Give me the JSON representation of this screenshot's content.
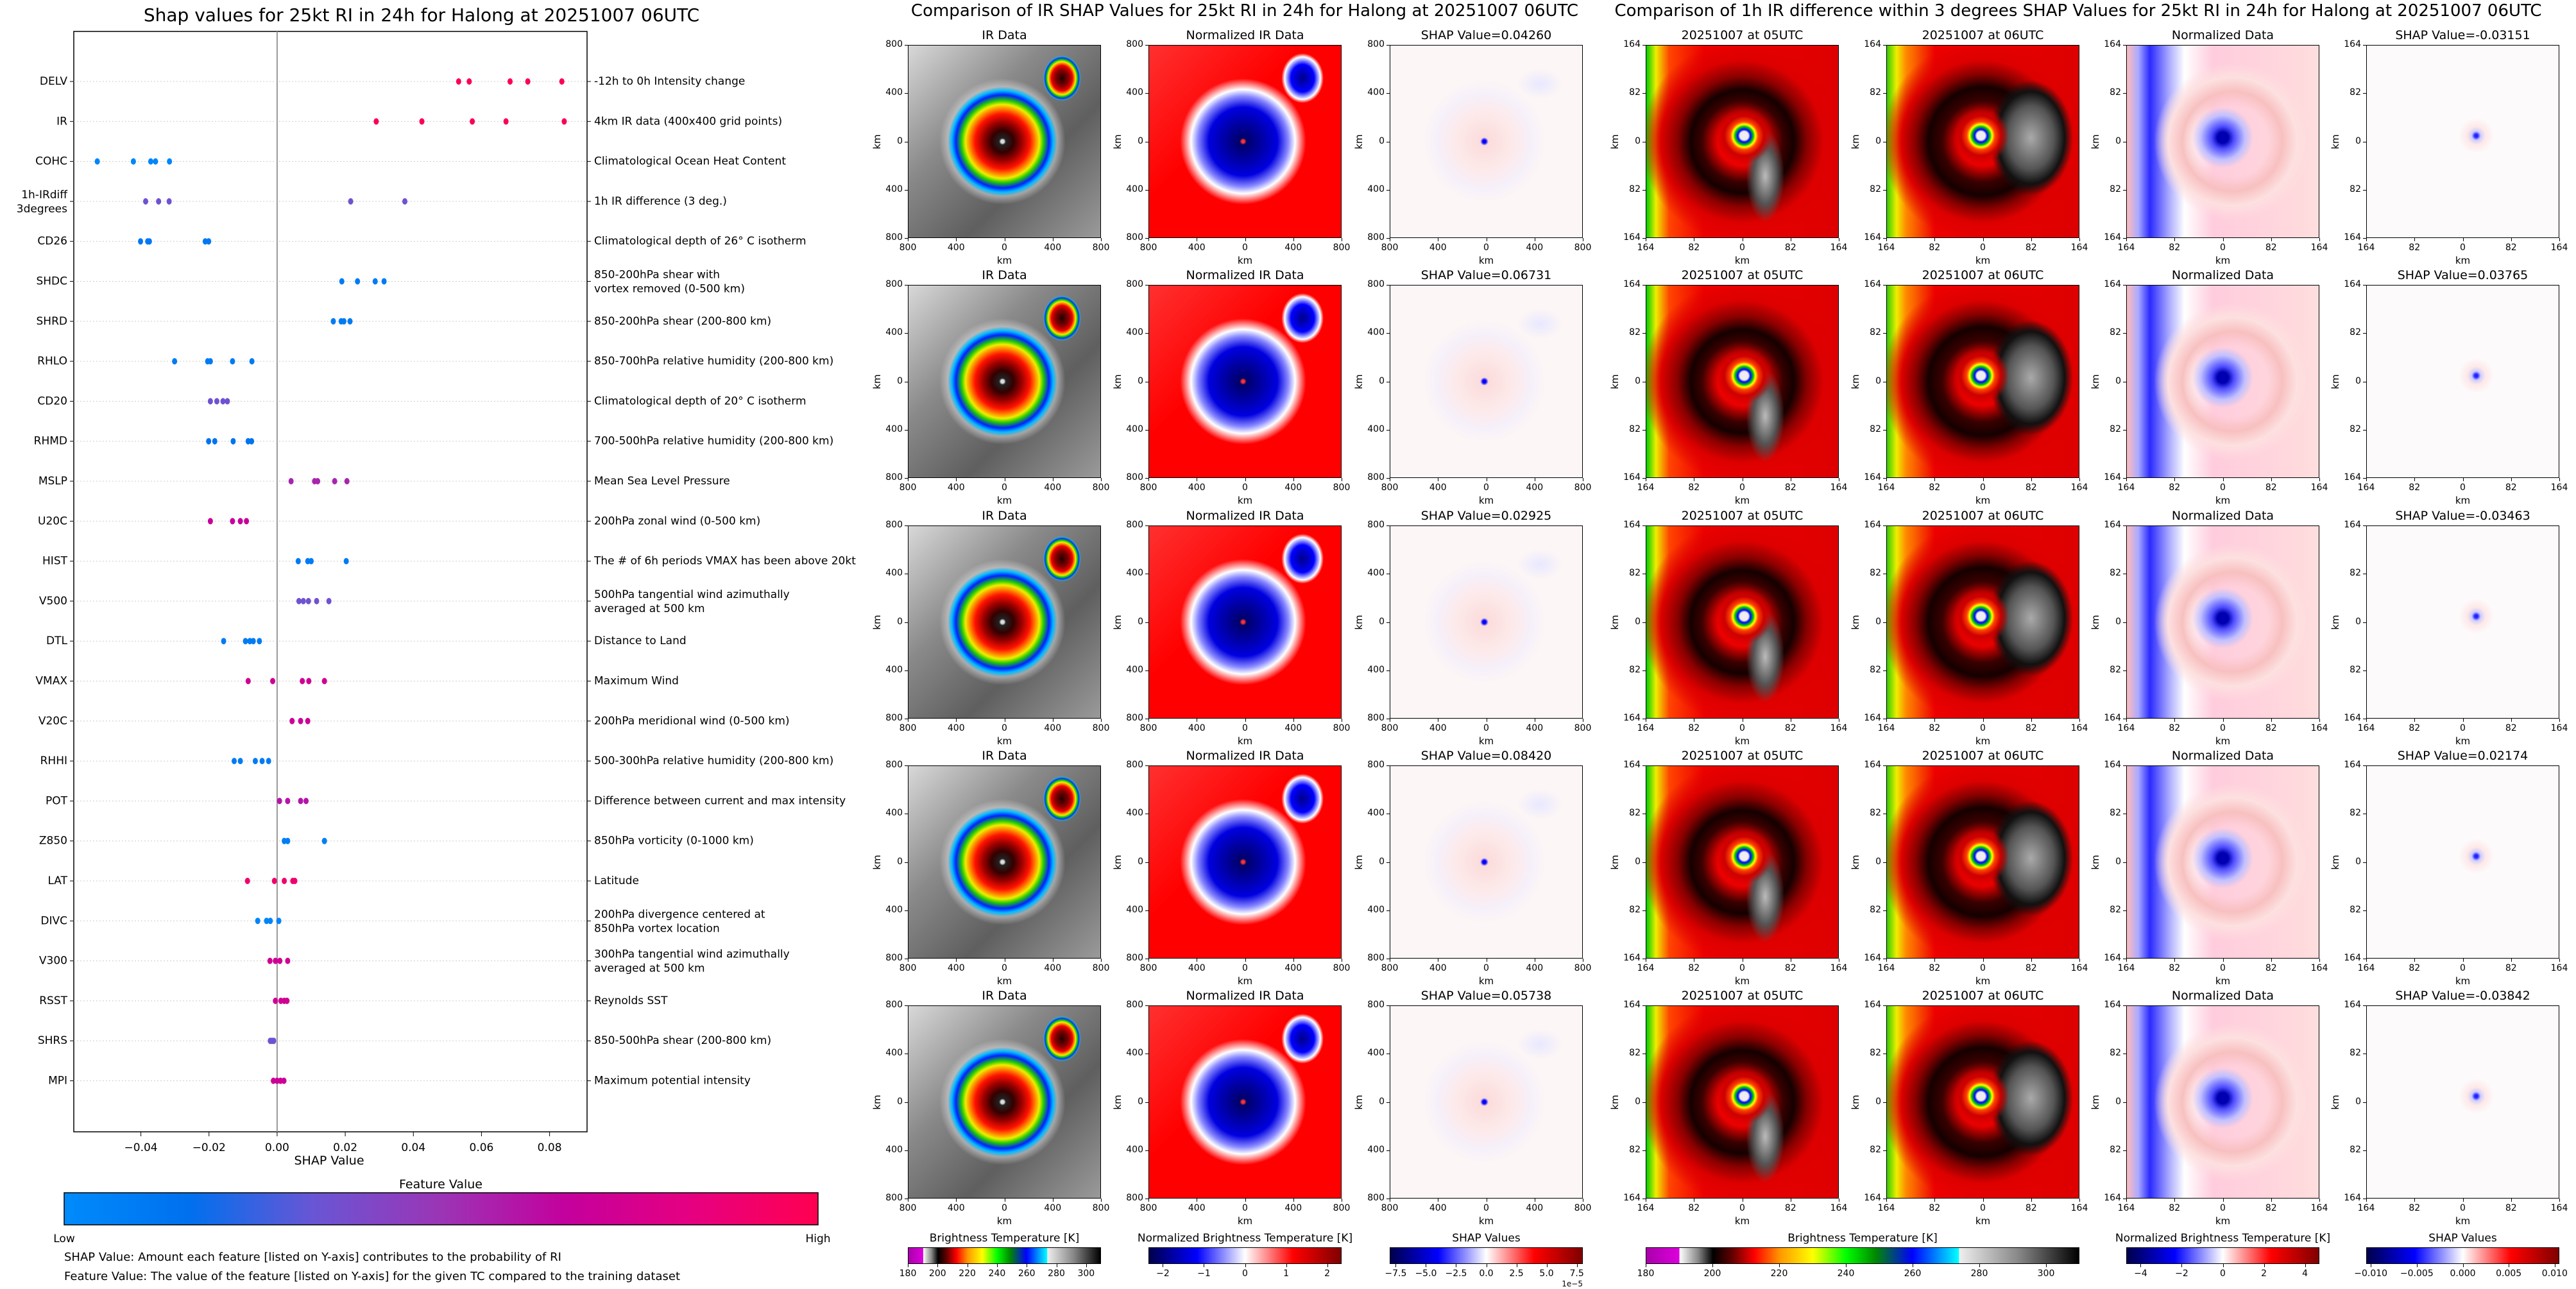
{
  "chart_data": {
    "type": "scatter",
    "title": "Shap values for 25kt RI in 24h for Halong at 20251007 06UTC",
    "xlabel": "SHAP Value",
    "ylabel": "",
    "xlim": [
      -0.0597,
      0.091
    ],
    "xticks": [
      {
        "label": "−0.04",
        "value": -0.04
      },
      {
        "label": "−0.02",
        "value": -0.02
      },
      {
        "label": "0.00",
        "value": 0.0
      },
      {
        "label": "0.02",
        "value": 0.02
      },
      {
        "label": "0.04",
        "value": 0.04
      },
      {
        "label": "0.06",
        "value": 0.06
      },
      {
        "label": "0.08",
        "value": 0.08
      }
    ],
    "grid": "dotted horizontal per feature",
    "features": [
      {
        "code": "DELV",
        "desc": "-12h to 0h Intensity change",
        "feature_value": 0.97,
        "shap": [
          0.0533,
          0.0564,
          0.0684,
          0.0736,
          0.0836
        ]
      },
      {
        "code": "IR",
        "desc": "4km IR data (400x400 grid points)",
        "feature_value": 0.97,
        "shap": [
          0.0291,
          0.0425,
          0.0573,
          0.0672,
          0.0843
        ]
      },
      {
        "code": "COHC",
        "desc": "Climatological Ocean Heat Content",
        "feature_value": 0.03,
        "shap": [
          -0.0528,
          -0.0422,
          -0.0371,
          -0.0357,
          -0.0316
        ]
      },
      {
        "code": "1h-IRdiff\n3degrees",
        "desc": "1h IR difference (3 deg.)",
        "feature_value": 0.35,
        "shap": [
          -0.0386,
          -0.0348,
          -0.0317,
          0.0216,
          0.0375
        ]
      },
      {
        "code": "CD26",
        "desc": "Climatological depth of 26° C isotherm",
        "feature_value": 0.12,
        "shap": [
          -0.0401,
          -0.038,
          -0.0375,
          -0.0211,
          -0.0201
        ]
      },
      {
        "code": "SHDC",
        "desc": "850-200hPa shear with\nvortex removed (0-500 km)",
        "feature_value": 0.1,
        "shap": [
          0.019,
          0.0236,
          0.0288,
          0.0314
        ]
      },
      {
        "code": "SHRD",
        "desc": "850-200hPa shear (200-800 km)",
        "feature_value": 0.1,
        "shap": [
          0.0165,
          0.0188,
          0.0196,
          0.0214
        ]
      },
      {
        "code": "RHLO",
        "desc": "850-700hPa relative humidity (200-800 km)",
        "feature_value": 0.1,
        "shap": [
          -0.0301,
          -0.0204,
          -0.0196,
          -0.0131,
          -0.0074
        ]
      },
      {
        "code": "CD20",
        "desc": "Climatological depth of 20° C isotherm",
        "feature_value": 0.35,
        "shap": [
          -0.0196,
          -0.0177,
          -0.0159,
          -0.0146
        ]
      },
      {
        "code": "RHMD",
        "desc": "700-500hPa relative humidity (200-800 km)",
        "feature_value": 0.15,
        "shap": [
          -0.0201,
          -0.0183,
          -0.0129,
          -0.0085,
          -0.0075
        ]
      },
      {
        "code": "MSLP",
        "desc": "Mean Sea Level Pressure",
        "feature_value": 0.55,
        "shap": [
          0.0041,
          0.011,
          0.0119,
          0.0169,
          0.0205
        ]
      },
      {
        "code": "U20C",
        "desc": "200hPa zonal wind (0-500 km)",
        "feature_value": 0.68,
        "shap": [
          -0.0196,
          -0.0131,
          -0.0108,
          -0.009
        ]
      },
      {
        "code": "HIST",
        "desc": "The # of 6h periods VMAX has been above 20kt",
        "feature_value": 0.1,
        "shap": [
          0.0062,
          0.009,
          0.01,
          0.0203
        ]
      },
      {
        "code": "V500",
        "desc": "500hPa tangential wind azimuthally\naveraged at 500 km",
        "feature_value": 0.35,
        "shap": [
          0.0064,
          0.0077,
          0.0092,
          0.0116,
          0.0152
        ]
      },
      {
        "code": "DTL",
        "desc": "Distance to Land",
        "feature_value": 0.1,
        "shap": [
          -0.0157,
          -0.0093,
          -0.008,
          -0.007,
          -0.0052
        ]
      },
      {
        "code": "VMAX",
        "desc": "Maximum Wind",
        "feature_value": 0.72,
        "shap": [
          -0.0085,
          -0.0013,
          0.0074,
          0.0093,
          0.0139
        ]
      },
      {
        "code": "V20C",
        "desc": "200hPa meridional wind (0-500 km)",
        "feature_value": 0.7,
        "shap": [
          0.0044,
          0.0069,
          0.009
        ]
      },
      {
        "code": "RHHI",
        "desc": "500-300hPa relative humidity (200-800 km)",
        "feature_value": 0.1,
        "shap": [
          -0.0126,
          -0.0108,
          -0.0064,
          -0.0044,
          -0.0025
        ]
      },
      {
        "code": "POT",
        "desc": "Difference between current and max intensity",
        "feature_value": 0.6,
        "shap": [
          0.0007,
          0.0031,
          0.0069,
          0.0085
        ]
      },
      {
        "code": "Z850",
        "desc": "850hPa vorticity (0-1000 km)",
        "feature_value": 0.08,
        "shap": [
          0.0021,
          0.0031,
          0.0139
        ]
      },
      {
        "code": "LAT",
        "desc": "Latitude",
        "feature_value": 0.9,
        "shap": [
          -0.0087,
          -0.0008,
          0.0021,
          0.0046,
          0.0052
        ]
      },
      {
        "code": "DIVC",
        "desc": "200hPa divergence centered at\n850hPa vortex location",
        "feature_value": 0.04,
        "shap": [
          -0.0057,
          -0.0031,
          -0.002,
          0.0005
        ]
      },
      {
        "code": "V300",
        "desc": "300hPa tangential wind azimuthally\naveraged at 500 km",
        "feature_value": 0.72,
        "shap": [
          -0.0021,
          -0.0005,
          0.0008,
          0.0031
        ]
      },
      {
        "code": "RSST",
        "desc": "Reynolds SST",
        "feature_value": 0.72,
        "shap": [
          -0.0005,
          0.0011,
          0.0021,
          0.0029
        ]
      },
      {
        "code": "SHRS",
        "desc": "850-500hPa shear (200-800 km)",
        "feature_value": 0.35,
        "shap": [
          -0.002,
          -0.0015,
          -0.001
        ]
      },
      {
        "code": "MPI",
        "desc": "Maximum potential intensity",
        "feature_value": 0.7,
        "shap": [
          -0.0011,
          0.0,
          0.001,
          0.002
        ]
      }
    ],
    "colorbar": {
      "title": "Feature Value",
      "low": "Low",
      "high": "High",
      "colors": [
        "#008bfb",
        "#0070ee",
        "#6a55d4",
        "#9b35b5",
        "#c4009d",
        "#e60080",
        "#ff0051"
      ]
    },
    "notes": [
      "SHAP Value: Amount each feature [listed on Y-axis] contributes to the probability of RI",
      "Feature Value: The value of the feature [listed on Y-axis] for the given TC compared to the training dataset"
    ]
  },
  "ir_comparison": {
    "title": "Comparison of IR SHAP Values for 25kt RI in 24h for Halong at 20251007 06UTC",
    "col_titles": [
      "IR Data",
      "Normalized IR Data"
    ],
    "shap_titles": [
      "SHAP Value=0.04260",
      "SHAP Value=0.06731",
      "SHAP Value=0.02925",
      "SHAP Value=0.08420",
      "SHAP Value=0.05738"
    ],
    "ticks": [
      "800",
      "400",
      "0",
      "400",
      "800"
    ],
    "axis_label": "km",
    "colorbars": [
      {
        "title": "Brightness Temperature [K]",
        "cmap": "bt",
        "range": [
          180,
          310
        ],
        "ticks": [
          {
            "label": "180",
            "value": 180
          },
          {
            "label": "200",
            "value": 200
          },
          {
            "label": "220",
            "value": 220
          },
          {
            "label": "240",
            "value": 240
          },
          {
            "label": "260",
            "value": 260
          },
          {
            "label": "280",
            "value": 280
          },
          {
            "label": "300",
            "value": 300
          }
        ]
      },
      {
        "title": "Normalized Brightness Temperature [K]",
        "cmap": "seismic",
        "range": [
          -2.35,
          2.35
        ],
        "ticks": [
          {
            "label": "−2",
            "value": -2
          },
          {
            "label": "−1",
            "value": -1
          },
          {
            "label": "0",
            "value": 0
          },
          {
            "label": "1",
            "value": 1
          },
          {
            "label": "2",
            "value": 2
          }
        ]
      },
      {
        "title": "SHAP Values",
        "cmap": "seismic",
        "range": [
          -8,
          8
        ],
        "offset": "1e−5",
        "ticks": [
          {
            "label": "−7.5",
            "value": -7.5
          },
          {
            "label": "−5.0",
            "value": -5
          },
          {
            "label": "−2.5",
            "value": -2.5
          },
          {
            "label": "0.0",
            "value": 0
          },
          {
            "label": "2.5",
            "value": 2.5
          },
          {
            "label": "5.0",
            "value": 5
          },
          {
            "label": "7.5",
            "value": 7.5
          }
        ]
      }
    ]
  },
  "irdiff_comparison": {
    "title": "Comparison of 1h IR difference within 3 degrees SHAP Values for 25kt RI in 24h for Halong at 20251007 06UTC",
    "col_titles": [
      "20251007 at 05UTC",
      "20251007 at 06UTC",
      "Normalized Data"
    ],
    "shap_titles": [
      "SHAP Value=-0.03151",
      "SHAP Value=0.03765",
      "SHAP Value=-0.03463",
      "SHAP Value=0.02174",
      "SHAP Value=-0.03842"
    ],
    "ticks": [
      "164",
      "82",
      "0",
      "82",
      "164"
    ],
    "axis_label": "km",
    "colorbars": [
      {
        "title": "Brightness Temperature [K]",
        "cmap": "bt",
        "range": [
          180,
          310
        ],
        "ticks": [
          {
            "label": "180",
            "value": 180
          },
          {
            "label": "200",
            "value": 200
          },
          {
            "label": "220",
            "value": 220
          },
          {
            "label": "240",
            "value": 240
          },
          {
            "label": "260",
            "value": 260
          },
          {
            "label": "280",
            "value": 280
          },
          {
            "label": "300",
            "value": 300
          }
        ]
      },
      {
        "title": "Normalized Brightness Temperature [K]",
        "cmap": "seismic",
        "range": [
          -4.7,
          4.7
        ],
        "ticks": [
          {
            "label": "−4",
            "value": -4
          },
          {
            "label": "−2",
            "value": -2
          },
          {
            "label": "0",
            "value": 0
          },
          {
            "label": "2",
            "value": 2
          },
          {
            "label": "4",
            "value": 4
          }
        ]
      },
      {
        "title": "SHAP Values",
        "cmap": "seismic",
        "range": [
          -0.0105,
          0.0105
        ],
        "ticks": [
          {
            "label": "−0.010",
            "value": -0.01
          },
          {
            "label": "−0.005",
            "value": -0.005
          },
          {
            "label": "0.000",
            "value": 0
          },
          {
            "label": "0.005",
            "value": 0.005
          },
          {
            "label": "0.010",
            "value": 0.01
          }
        ]
      }
    ]
  }
}
